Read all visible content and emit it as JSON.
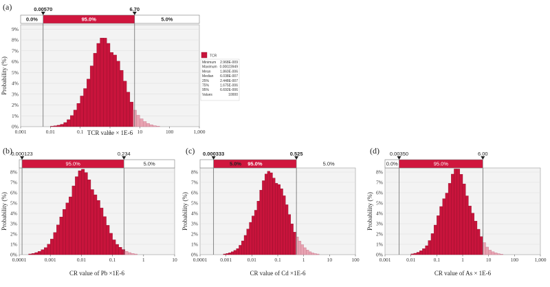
{
  "colors": {
    "bar": "#c8143c",
    "bar_stroke": "#8a0b25",
    "band": "#d0163e",
    "plot_bg": "#f3f3f3",
    "grid": "#dddddd"
  },
  "chart_data": [
    {
      "id": "a",
      "panel_label": "(a)",
      "type": "bar",
      "title": "",
      "xlabel": "TCR value × 1E-6",
      "ylabel": "Probability (%)",
      "xscale": "log",
      "xlim": [
        0.001,
        1000
      ],
      "ylim": [
        0,
        9.4
      ],
      "xtick_labels": [
        "0.001",
        "0.01",
        "0.1",
        "1",
        "10",
        "100",
        "1,000"
      ],
      "ytick_labels": [
        "0%",
        "1%",
        "2%",
        "3%",
        "4%",
        "5%",
        "6%",
        "7%",
        "8%",
        "9%"
      ],
      "lower_bound": 0.0057,
      "upper_bound": 6.7,
      "lower_label": "0.00570",
      "upper_label": "6.70",
      "bounds_bold": true,
      "bands": [
        "0.0%",
        "95.0%",
        "5.0%"
      ],
      "hist": {
        "center": -0.15,
        "sigma": 0.55,
        "peak": 7.9,
        "bins_per_decade": 9
      },
      "legend": {
        "series": "TCR",
        "stats": [
          [
            "Minimum",
            "2.968E-009"
          ],
          [
            "Maximum",
            "0.00023949"
          ],
          [
            "Mean",
            "1.860E-006"
          ],
          [
            "Median",
            "6.038E-007"
          ],
          [
            "25%",
            "2.448E-007"
          ],
          [
            "75%",
            "1.675E-006"
          ],
          [
            "95%",
            "6.692E-006"
          ],
          [
            "Values",
            "10000"
          ]
        ]
      }
    },
    {
      "id": "b",
      "panel_label": "(b)",
      "type": "bar",
      "title": "",
      "xlabel": "CR value of Pb ×1E-6",
      "ylabel": "Probability (%)",
      "xscale": "log",
      "xlim": [
        0.0001,
        10
      ],
      "ylim": [
        0,
        8.4
      ],
      "xtick_labels": [
        "0.0001",
        "0.001",
        "0.01",
        "0.1",
        "1",
        "10"
      ],
      "ytick_labels": [
        "0%",
        "1%",
        "2%",
        "3%",
        "4%",
        "5%",
        "6%",
        "7%",
        "8%"
      ],
      "lower_bound": 0.000123,
      "upper_bound": 0.234,
      "lower_label": "0.000123",
      "upper_label": "0.234",
      "bounds_bold": false,
      "bands": [
        "",
        "95.0%",
        "5.0%"
      ],
      "hist": {
        "center": -1.95,
        "sigma": 0.55,
        "peak": 7.75,
        "bins_per_decade": 10
      }
    },
    {
      "id": "c",
      "panel_label": "(c)",
      "type": "bar",
      "title": "",
      "xlabel": "CR value of Cd ×1E-6",
      "ylabel": "Probability (%)",
      "xscale": "log",
      "xlim": [
        0.0001,
        100
      ],
      "ylim": [
        0,
        8.4
      ],
      "xtick_labels": [
        "0.0001",
        "0.001",
        "0.01",
        "0.1",
        "1",
        "10",
        "100"
      ],
      "ytick_labels": [
        "0%",
        "1%",
        "2%",
        "3%",
        "4%",
        "5%",
        "6%",
        "7%",
        "8%"
      ],
      "lower_bound": 0.000333,
      "upper_bound": 0.525,
      "lower_label": "0.000333",
      "upper_label": "0.525",
      "bounds_bold": true,
      "bands": [
        "",
        "95.0%",
        "5.0%"
      ],
      "hist": {
        "center": -1.25,
        "sigma": 0.58,
        "peak": 7.75,
        "bins_per_decade": 10
      }
    },
    {
      "id": "d",
      "panel_label": "(d)",
      "type": "bar",
      "title": "",
      "xlabel": "CR value of As × 1E-6",
      "ylabel": "Probability (%)",
      "xscale": "log",
      "xlim": [
        0.001,
        1000
      ],
      "ylim": [
        0,
        8.4
      ],
      "xtick_labels": [
        "0.001",
        "0.01",
        "0.1",
        "1",
        "10",
        "100",
        "1,000"
      ],
      "ytick_labels": [
        "0%",
        "1%",
        "2%",
        "3%",
        "4%",
        "5%",
        "6%",
        "7%",
        "8%"
      ],
      "lower_bound": 0.0035,
      "upper_bound": 6.0,
      "lower_label": "0.00350",
      "upper_label": "6.00",
      "bounds_bold": false,
      "bands": [
        "0.0%",
        "95.0%",
        "5.0%"
      ],
      "hist": {
        "center": -0.25,
        "sigma": 0.55,
        "peak": 7.85,
        "bins_per_decade": 9
      }
    }
  ]
}
